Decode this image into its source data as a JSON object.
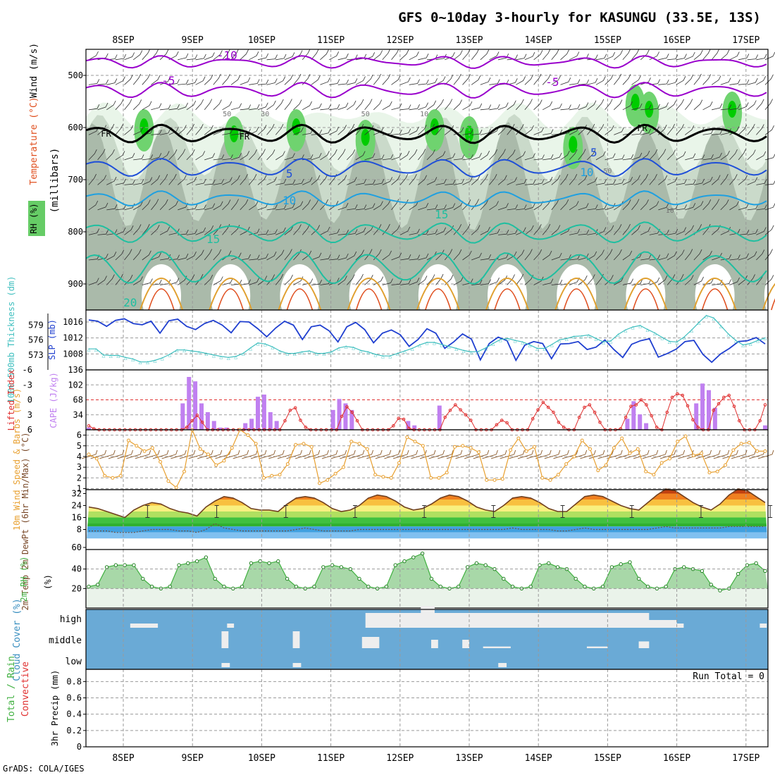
{
  "header": {
    "title": "GFS 0~10day 3-hourly for KASUNGU (33.5E, 13S)",
    "credit": "GrADS: COLA/IGES"
  },
  "dates": [
    "8SEP",
    "9SEP",
    "10SEP",
    "11SEP",
    "12SEP",
    "13SEP",
    "14SEP",
    "15SEP",
    "16SEP",
    "17SEP"
  ],
  "colors": {
    "frame": "#000000",
    "grid": "#9a9a9a",
    "rh_fill": [
      "#e8f4e8",
      "#c8d8c8",
      "#a8b8a8",
      "#6fd36f",
      "#00cc00"
    ],
    "temp_purple": "#9900cc",
    "temp_blue": "#1f4fd8",
    "temp_lightblue": "#1fa0e0",
    "temp_teal": "#1fbfa0",
    "temp_orange": "#e0a030",
    "temp_red": "#e05020",
    "freeze": "#000000",
    "slp": "#1f3fd0",
    "thickness": "#3fbfbf",
    "cape": "#c080f0",
    "lifted_index": "#e03030",
    "wind_speed": "#e8a030",
    "wind_barb": "#8b5a2b",
    "temp_max": "#e06010",
    "dewpt_band": "#3f8fe0",
    "rh2m": "#40b040",
    "cloud_bg": "#6aaad6",
    "cloud_bar": "#eeeeee"
  },
  "chart_data": [
    {
      "id": "upper_air",
      "type": "heatmap",
      "ylabel_parts": [
        "RH (%)",
        "Temperature (°C)",
        "Wind (m/s)"
      ],
      "yunit": "(millibars)",
      "yticks": [
        500,
        600,
        700,
        800,
        900
      ],
      "ylim": [
        450,
        950
      ],
      "freezing_label": "FR",
      "temperature_contour_labels": [
        "-10",
        "-5",
        "-5",
        "5",
        "5",
        "10",
        "10",
        "15",
        "15",
        "20"
      ],
      "rh_contour_labels": [
        "50",
        "30",
        "50",
        "10",
        "50",
        "10"
      ]
    },
    {
      "id": "slp_thickness",
      "type": "line",
      "ylabel_left": "1000-500mb Thickness (dm)",
      "ylabel_right": "SLP (mb)",
      "yticks_left": [
        573,
        576,
        579
      ],
      "yticks_right": [
        1008,
        1012,
        1016
      ],
      "series": [
        {
          "name": "SLP (mb)",
          "values": [
            1016.5,
            1016.2,
            1014.9,
            1016.4,
            1016.8,
            1015.6,
            1015.3,
            1016.2,
            1013.2,
            1016.3,
            1016.7,
            1014.9,
            1014.1,
            1015.6,
            1016.4,
            1015.2,
            1013.3,
            1016.1,
            1016.0,
            1014.3,
            1012.3,
            1014.5,
            1016.2,
            1015.2,
            1011.6,
            1014.8,
            1015.2,
            1013.8,
            1011.0,
            1014.8,
            1015.9,
            1014.1,
            1010.8,
            1013.2,
            1014.0,
            1012.8,
            1009.9,
            1011.6,
            1014.3,
            1013.2,
            1009.4,
            1011.0,
            1013.0,
            1011.7,
            1006.5,
            1010.6,
            1012.2,
            1011.3,
            1006.4,
            1010.2,
            1011.1,
            1010.6,
            1006.8,
            1010.5,
            1010.6,
            1011.1,
            1009.1,
            1009.7,
            1011.5,
            1009.1,
            1007.1,
            1010.4,
            1011.3,
            1011.8,
            1007.2,
            1008.1,
            1009.2,
            1011.1,
            1011.4,
            1007.9,
            1005.9,
            1008.0,
            1009.4,
            1011.1,
            1011.3,
            1012.1,
            1010.5
          ]
        },
        {
          "name": "1000-500mb Thickness (dm)",
          "values": [
            574.2,
            574.2,
            573.0,
            572.9,
            572.9,
            572.5,
            572.2,
            571.6,
            571.6,
            571.9,
            572.4,
            573.1,
            574.0,
            574.0,
            573.8,
            573.6,
            573.3,
            573.0,
            572.7,
            572.5,
            572.7,
            573.3,
            574.4,
            575.4,
            575.2,
            574.6,
            573.8,
            573.3,
            573.3,
            573.6,
            573.8,
            573.3,
            573.3,
            573.6,
            574.4,
            574.7,
            574.5,
            573.9,
            573.6,
            573.1,
            572.8,
            572.8,
            573.3,
            573.8,
            574.3,
            575.0,
            575.5,
            575.5,
            575.1,
            574.7,
            574.3,
            573.9,
            573.6,
            573.7,
            574.4,
            575.3,
            576.1,
            576.3,
            575.9,
            575.6,
            575.0,
            574.3,
            574.3,
            575.1,
            576.0,
            576.3,
            576.7,
            576.8,
            577.0,
            576.3,
            575.6,
            575.8,
            577.1,
            578.0,
            578.6,
            578.9,
            578.1,
            577.4,
            576.5,
            575.7,
            575.6,
            576.6,
            578.0,
            579.5,
            580.9,
            580.4,
            578.8,
            577.2,
            575.9,
            575.0,
            575.3,
            575.9,
            576.4
          ]
        }
      ]
    },
    {
      "id": "cape_li",
      "type": "bar",
      "ylabel_left": "Lifted Index",
      "ylabel_right": "CAPE (J/kg)",
      "yticks_left": [
        "-6",
        "-3",
        "0",
        "3",
        "6"
      ],
      "yticks_right": [
        34,
        68,
        102,
        136
      ],
      "ylim_cape": [
        0,
        136
      ],
      "series": [
        {
          "name": "CAPE (J/kg)",
          "values": [
            5,
            0,
            0,
            0,
            0,
            0,
            0,
            0,
            0,
            0,
            0,
            0,
            0,
            0,
            0,
            60,
            120,
            110,
            60,
            40,
            20,
            5,
            5,
            0,
            0,
            15,
            25,
            75,
            80,
            40,
            20,
            0,
            0,
            0,
            0,
            0,
            0,
            0,
            0,
            45,
            70,
            60,
            45,
            0,
            0,
            0,
            0,
            0,
            0,
            0,
            0,
            20,
            10,
            0,
            0,
            0,
            55,
            0,
            0,
            0,
            0,
            0,
            0,
            0,
            0,
            0,
            0,
            0,
            0,
            0,
            0,
            0,
            0,
            0,
            0,
            0,
            0,
            0,
            0,
            0,
            0,
            0,
            0,
            0,
            0,
            0,
            25,
            65,
            35,
            15,
            0,
            0,
            0,
            0,
            0,
            0,
            0,
            60,
            105,
            90,
            50,
            0,
            0,
            0,
            0,
            0,
            0,
            0,
            10
          ]
        },
        {
          "name": "Lifted Index",
          "values": [
            5.2,
            5.8,
            6,
            6,
            6,
            6,
            6,
            6,
            6,
            6,
            6,
            6,
            6,
            6,
            6,
            6,
            6,
            6,
            6,
            5.5,
            4.2,
            3.1,
            4.5,
            6,
            6,
            6,
            6,
            6,
            6,
            6,
            6,
            6,
            6,
            6,
            6,
            6,
            6,
            6,
            4.2,
            2.1,
            1.6,
            4.1,
            5.5,
            6,
            6,
            6,
            6,
            6,
            6,
            3.3,
            1.4,
            2.5,
            4.2,
            6,
            6,
            6,
            6,
            6,
            6,
            5.2,
            3.7,
            3.9,
            5.7,
            6,
            6,
            6,
            6,
            6,
            6,
            3.5,
            2.1,
            1.0,
            2.0,
            3.0,
            4.1,
            6,
            6,
            6,
            6,
            5.0,
            4.1,
            4.6,
            6,
            6,
            6,
            6,
            3.8,
            2.0,
            0.5,
            1.5,
            2.5,
            4.5,
            5.5,
            6,
            6,
            3.5,
            1.5,
            1.0,
            2.5,
            4.5,
            6,
            6,
            6,
            5.8,
            3.5,
            1.3,
            1.0,
            0.0,
            1.0,
            3.2,
            5.5,
            6,
            2.5,
            -0.5,
            -1.2,
            -0.9,
            1.2,
            4.0,
            5.5,
            6,
            6,
            2.1,
            0.8,
            -0.5,
            -0.9,
            1.3,
            4.2,
            6,
            6,
            6,
            4.2,
            1.0
          ]
        }
      ]
    },
    {
      "id": "wind10m",
      "type": "line",
      "ylabel": "10m Wind Speed & Barbs (m/s)",
      "yticks": [
        1,
        2,
        3,
        4,
        5,
        6
      ],
      "ylim": [
        1,
        6.6
      ],
      "series": [
        {
          "name": "10m Wind Speed (m/s)",
          "values": [
            4.2,
            3.8,
            2.2,
            2.0,
            2.2,
            5.5,
            5.0,
            4.5,
            4.8,
            3.5,
            1.7,
            1.1,
            2.6,
            6.5,
            4.7,
            4.2,
            3.2,
            3.6,
            4.8,
            6.5,
            6.0,
            5.2,
            2.0,
            2.2,
            2.3,
            3.3,
            5.1,
            5.2,
            4.9,
            1.5,
            1.8,
            2.4,
            3.0,
            5.4,
            5.2,
            4.7,
            2.3,
            2.1,
            2.0,
            3.4,
            5.8,
            5.4,
            5.0,
            2.0,
            2.0,
            2.5,
            4.9,
            5.0,
            4.8,
            4.4,
            1.8,
            1.8,
            1.9,
            4.6,
            5.7,
            4.5,
            4.9,
            2.0,
            1.8,
            2.3,
            3.3,
            4.0,
            5.5,
            4.7,
            2.7,
            3.2,
            4.8,
            5.7,
            4.3,
            4.7,
            2.6,
            2.3,
            3.4,
            3.8,
            5.4,
            5.9,
            4.1,
            4.3,
            2.5,
            2.6,
            3.2,
            4.6,
            5.2,
            5.3,
            4.5,
            4.5
          ]
        }
      ]
    },
    {
      "id": "temp2m",
      "type": "area",
      "ylabel": "2m Temp 2m DewPt (6hr Min/Max) (°C)",
      "yticks": [
        "32",
        "24",
        "16",
        "8",
        "60"
      ],
      "series": [
        {
          "name": "2m Temp (°C)",
          "values": [
            23,
            22,
            20,
            18,
            16,
            21,
            24,
            26,
            25,
            22,
            20,
            19,
            17,
            23,
            27,
            30,
            29,
            26,
            22,
            21,
            21,
            20,
            25,
            29,
            30,
            29,
            26,
            22,
            20,
            21,
            24,
            29,
            31,
            30,
            27,
            23,
            21,
            22,
            25,
            29,
            31,
            30,
            27,
            23,
            21,
            20,
            24,
            29,
            30,
            29,
            26,
            22,
            20,
            20,
            25,
            30,
            31,
            30,
            27,
            24,
            22,
            21,
            26,
            31,
            35,
            34,
            30,
            26,
            23,
            21,
            25,
            31,
            35,
            34,
            30,
            26
          ]
        },
        {
          "name": "2m DewPt (°C)",
          "values": [
            7,
            7,
            7,
            6,
            6,
            6,
            7,
            8,
            8,
            8,
            7,
            7,
            6,
            8,
            12,
            9,
            8,
            7,
            7,
            7,
            7,
            7,
            7,
            8,
            9,
            8,
            7,
            7,
            7,
            7,
            8,
            8,
            8,
            8,
            8,
            8,
            8,
            8,
            8,
            8,
            8,
            8,
            8,
            8,
            8,
            8,
            8,
            9,
            8,
            8,
            8,
            8,
            7,
            7,
            8,
            9,
            8,
            8,
            8,
            8,
            8,
            8,
            8,
            9,
            10,
            9,
            9,
            9,
            9,
            9,
            9,
            10,
            10,
            10,
            10,
            10
          ]
        }
      ]
    },
    {
      "id": "rh2m",
      "type": "area",
      "ylabel": "2m RH (%)",
      "yticks": [
        20,
        40
      ],
      "ylim": [
        0,
        60
      ],
      "series": [
        {
          "name": "2m RH (%)",
          "values": [
            22,
            24,
            42,
            44,
            44,
            44,
            30,
            22,
            20,
            22,
            44,
            46,
            48,
            52,
            30,
            22,
            20,
            22,
            46,
            48,
            46,
            48,
            30,
            22,
            20,
            22,
            42,
            44,
            42,
            40,
            30,
            22,
            20,
            22,
            44,
            48,
            52,
            56,
            30,
            22,
            20,
            22,
            42,
            46,
            44,
            40,
            30,
            22,
            20,
            22,
            44,
            46,
            42,
            40,
            30,
            22,
            20,
            22,
            42,
            45,
            47,
            30,
            22,
            20,
            22,
            40,
            42,
            40,
            38,
            24,
            18,
            20,
            35,
            44,
            46,
            38
          ]
        }
      ]
    },
    {
      "id": "cloud_cover",
      "type": "bar",
      "ylabel": "Cloud Cover (%)",
      "levels": [
        "high",
        "middle",
        "low"
      ]
    },
    {
      "id": "precip",
      "type": "bar",
      "ylabel_parts": [
        "Total / Rain",
        "Convective"
      ],
      "ylabel": "3hr Precip (mm)",
      "yticks": [
        "0",
        "0.2",
        "0.4",
        "0.6",
        "0.8"
      ],
      "ylim": [
        0,
        0.95
      ],
      "annotation": "Run Total = 0"
    }
  ]
}
